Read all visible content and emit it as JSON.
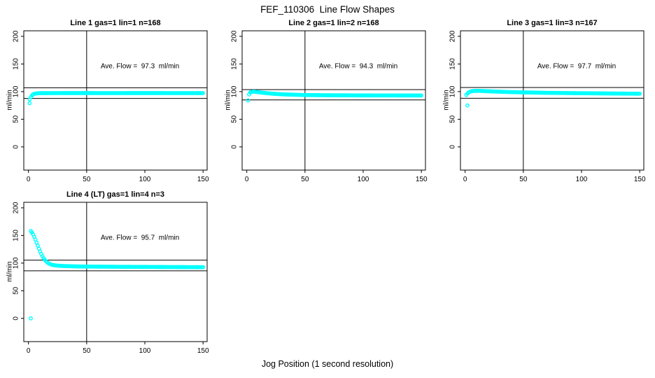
{
  "figure": {
    "title": "FEF_110306  Line Flow Shapes",
    "xlabel": "Jog Position (1 second resolution)",
    "background": "#ffffff",
    "axis_color": "#000000",
    "point_color": "#00ffff"
  },
  "chart_data": [
    {
      "type": "scatter",
      "title": "Line 1 gas=1 lin=1 n=168",
      "ylabel": "ml/min",
      "annotation": "Ave. Flow =  97.3  ml/min",
      "ave_flow_ml_min": 97.3,
      "n": 168,
      "xlim": [
        -4,
        153.5
      ],
      "ylim": [
        -42,
        210
      ],
      "xticks": [
        0,
        50,
        100,
        150
      ],
      "yticks": [
        0,
        50,
        100,
        150,
        200
      ],
      "vline_x": 50,
      "ref_lines_y": [
        107.0,
        87.6
      ],
      "x_range": [
        1,
        150
      ],
      "outliers": [
        [
          1,
          79
        ]
      ],
      "keypoints": [
        [
          1,
          86
        ],
        [
          2,
          90
        ],
        [
          3,
          93
        ],
        [
          4,
          95
        ],
        [
          5,
          96
        ],
        [
          7,
          96.8
        ],
        [
          10,
          97.2
        ],
        [
          20,
          97.3
        ],
        [
          40,
          97.4
        ],
        [
          70,
          97.3
        ],
        [
          100,
          97.4
        ],
        [
          130,
          97.3
        ],
        [
          150,
          97.3
        ]
      ]
    },
    {
      "type": "scatter",
      "title": "Line 2 gas=1 lin=2 n=168",
      "ylabel": "ml/min",
      "annotation": "Ave. Flow =  94.3  ml/min",
      "ave_flow_ml_min": 94.3,
      "n": 168,
      "xlim": [
        -4,
        153.5
      ],
      "ylim": [
        -42,
        210
      ],
      "xticks": [
        0,
        50,
        100,
        150
      ],
      "yticks": [
        0,
        50,
        100,
        150,
        200
      ],
      "vline_x": 50,
      "ref_lines_y": [
        103.7,
        84.9
      ],
      "x_range": [
        1,
        150
      ],
      "outliers": [],
      "keypoints": [
        [
          1,
          84
        ],
        [
          2,
          95
        ],
        [
          3,
          98.5
        ],
        [
          4,
          99.5
        ],
        [
          6,
          100
        ],
        [
          9,
          99.3
        ],
        [
          13,
          98.2
        ],
        [
          18,
          97
        ],
        [
          25,
          95.8
        ],
        [
          35,
          94.7
        ],
        [
          50,
          93.8
        ],
        [
          70,
          93.4
        ],
        [
          100,
          93.1
        ],
        [
          130,
          93
        ],
        [
          150,
          93
        ]
      ]
    },
    {
      "type": "scatter",
      "title": "Line 3 gas=1 lin=3 n=167",
      "ylabel": "ml/min",
      "annotation": "Ave. Flow =  97.7  ml/min",
      "ave_flow_ml_min": 97.7,
      "n": 167,
      "xlim": [
        -4,
        153.5
      ],
      "ylim": [
        -42,
        210
      ],
      "xticks": [
        0,
        50,
        100,
        150
      ],
      "yticks": [
        0,
        50,
        100,
        150,
        200
      ],
      "vline_x": 50,
      "ref_lines_y": [
        107.5,
        87.9
      ],
      "x_range": [
        1,
        150
      ],
      "outliers": [
        [
          2,
          75
        ]
      ],
      "keypoints": [
        [
          1,
          94
        ],
        [
          2,
          96.5
        ],
        [
          3,
          98.5
        ],
        [
          5,
          100.5
        ],
        [
          8,
          101.3
        ],
        [
          12,
          101.4
        ],
        [
          18,
          100.8
        ],
        [
          25,
          100.2
        ],
        [
          35,
          99.4
        ],
        [
          50,
          98.6
        ],
        [
          70,
          97.8
        ],
        [
          95,
          97.2
        ],
        [
          120,
          96.7
        ],
        [
          150,
          96.2
        ]
      ]
    },
    {
      "type": "scatter",
      "title": "Line 4 (LT) gas=1 lin=4 n=3",
      "ylabel": "ml/min",
      "annotation": "Ave. Flow =  95.7  ml/min",
      "ave_flow_ml_min": 95.7,
      "n": 3,
      "xlim": [
        -4,
        153.5
      ],
      "ylim": [
        -42,
        210
      ],
      "xticks": [
        0,
        50,
        100,
        150
      ],
      "yticks": [
        0,
        50,
        100,
        150,
        200
      ],
      "vline_x": 50,
      "ref_lines_y": [
        105.3,
        86.1
      ],
      "x_range": [
        2,
        150
      ],
      "outliers": [
        [
          2,
          0
        ]
      ],
      "keypoints": [
        [
          2,
          158
        ],
        [
          3,
          155.5
        ],
        [
          4,
          152
        ],
        [
          5,
          147.5
        ],
        [
          6,
          142.5
        ],
        [
          7,
          137
        ],
        [
          8,
          131.5
        ],
        [
          9,
          126
        ],
        [
          10,
          121
        ],
        [
          11,
          116.5
        ],
        [
          12,
          112.5
        ],
        [
          13,
          109
        ],
        [
          14,
          106
        ],
        [
          15,
          103.5
        ],
        [
          16,
          101.5
        ],
        [
          17,
          100
        ],
        [
          18,
          98.8
        ],
        [
          19,
          97.8
        ],
        [
          20,
          97
        ],
        [
          22,
          96.2
        ],
        [
          25,
          95.4
        ],
        [
          30,
          94.8
        ],
        [
          35,
          94.4
        ],
        [
          40,
          94.1
        ],
        [
          50,
          93.8
        ],
        [
          60,
          93.6
        ],
        [
          80,
          93.3
        ],
        [
          100,
          93.1
        ],
        [
          120,
          92.9
        ],
        [
          150,
          92.6
        ]
      ]
    }
  ]
}
